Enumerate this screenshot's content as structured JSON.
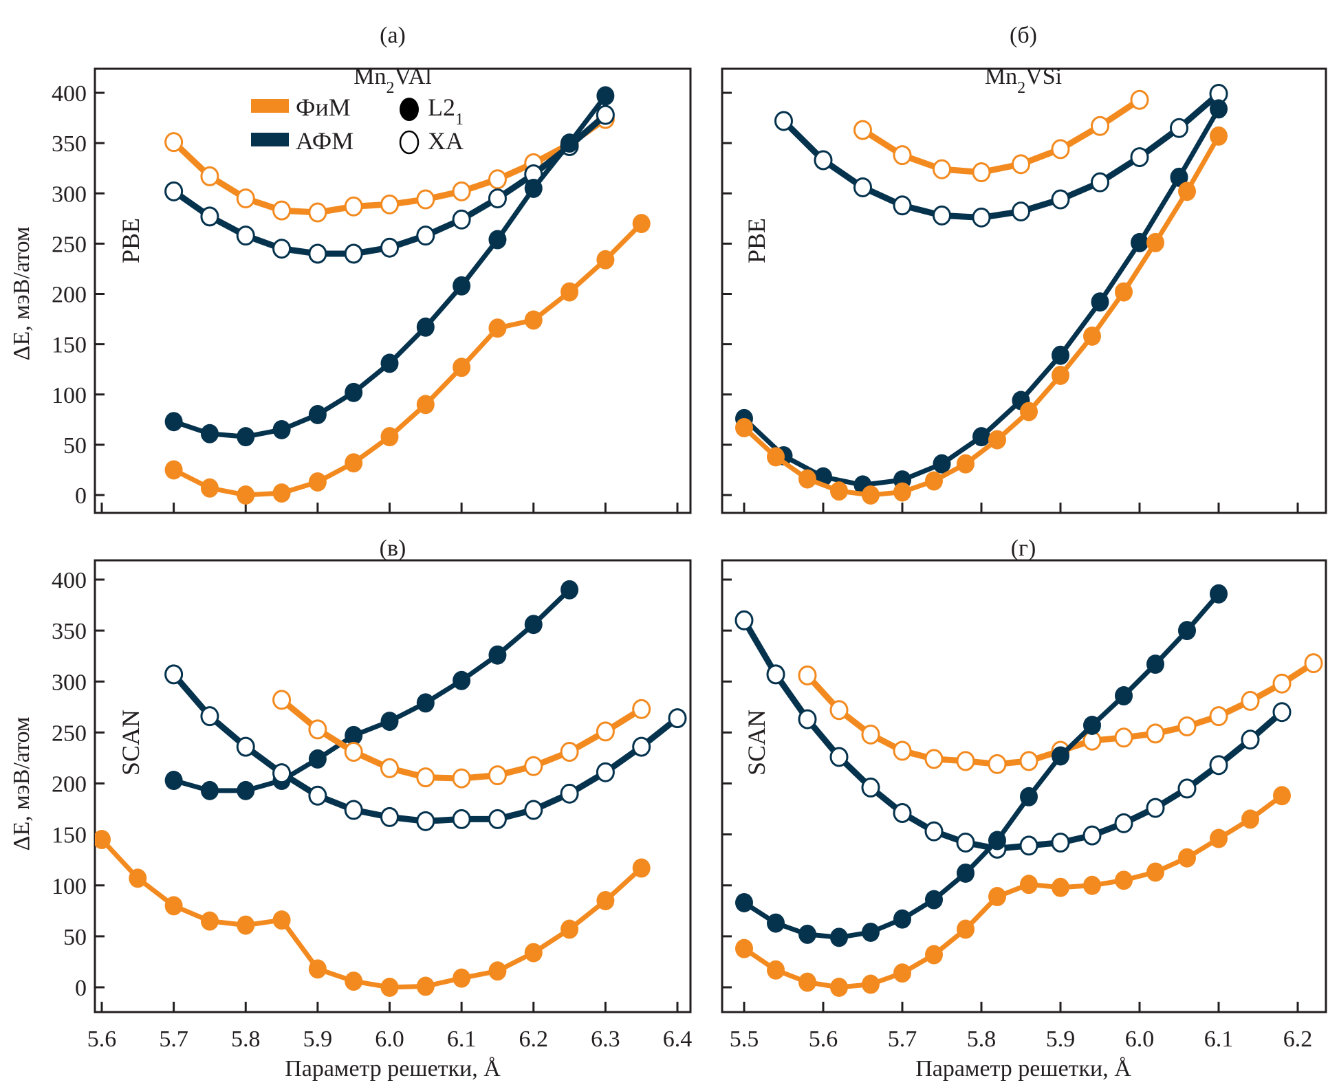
{
  "colors": {
    "fim": "#f38a1f",
    "afm": "#05324d",
    "axis": "#231f20"
  },
  "legend": {
    "fim_label": "ФиМ",
    "afm_label": "АФМ",
    "l21_label": "L2",
    "l21_sub": "1",
    "xa_label": "XA"
  },
  "ylabel": "ΔE, мэВ/атом",
  "xlabel": "Параметр решетки, Å",
  "chart_data": [
    {
      "type": "line",
      "panel": "(a)",
      "title": "Mn2VAl",
      "title_main": "Mn",
      "title_sub": "2",
      "title_rest": "VAl",
      "method": "PBE",
      "xlabel": "",
      "ylabel": "ΔE, мэВ/атом",
      "xlim": [
        5.575,
        6.41
      ],
      "ylim": [
        -18,
        418
      ],
      "xticks": [
        5.6,
        5.7,
        5.8,
        5.9,
        6.0,
        6.1,
        6.2,
        6.3,
        6.4
      ],
      "xtick_labels": [],
      "yticks": [
        0,
        50,
        100,
        150,
        200,
        250,
        300,
        350,
        400
      ],
      "ytick_labels": [
        "0",
        "50",
        "100",
        "150",
        "200",
        "250",
        "300",
        "350",
        "400"
      ],
      "show_legend": true,
      "legend_position": "top-left",
      "series": [
        {
          "name": "ФиМ XA",
          "magnetic": "fim",
          "structure": "XA",
          "x": [
            5.7,
            5.75,
            5.8,
            5.85,
            5.9,
            5.95,
            6.0,
            6.05,
            6.1,
            6.15,
            6.2,
            6.25,
            6.3
          ],
          "y": [
            351,
            317,
            295,
            283,
            281,
            287,
            289,
            294,
            302,
            314,
            330,
            349,
            374
          ]
        },
        {
          "name": "АФМ XA",
          "magnetic": "afm",
          "structure": "XA",
          "x": [
            5.7,
            5.75,
            5.8,
            5.85,
            5.9,
            5.95,
            6.0,
            6.05,
            6.1,
            6.15,
            6.2,
            6.25,
            6.3
          ],
          "y": [
            302,
            277,
            258,
            245,
            240,
            240,
            246,
            258,
            274,
            295,
            319,
            347,
            378
          ]
        },
        {
          "name": "АФМ L21",
          "magnetic": "afm",
          "structure": "L21",
          "x": [
            5.7,
            5.75,
            5.8,
            5.85,
            5.9,
            5.95,
            6.0,
            6.05,
            6.1,
            6.15,
            6.2,
            6.25,
            6.3
          ],
          "y": [
            73,
            61,
            58,
            65,
            80,
            102,
            131,
            167,
            208,
            254,
            305,
            350,
            397
          ]
        },
        {
          "name": "ФиМ L21",
          "magnetic": "fim",
          "structure": "L21",
          "x": [
            5.7,
            5.75,
            5.8,
            5.85,
            5.9,
            5.95,
            6.0,
            6.05,
            6.1,
            6.15,
            6.2,
            6.25,
            6.3,
            6.35
          ],
          "y": [
            25,
            7,
            0,
            2,
            13,
            32,
            58,
            90,
            127,
            166,
            174,
            202,
            234,
            270
          ]
        }
      ]
    },
    {
      "type": "line",
      "panel": "(б)",
      "title": "Mn2VSi",
      "title_main": "Mn",
      "title_sub": "2",
      "title_rest": "VSi",
      "method": "PBE",
      "xlabel": "",
      "ylabel": "",
      "xlim": [
        5.472,
        6.235
      ],
      "ylim": [
        -18,
        418
      ],
      "xticks": [
        5.5,
        5.6,
        5.7,
        5.8,
        5.9,
        6.0,
        6.1,
        6.2
      ],
      "xtick_labels": [],
      "yticks": [
        0,
        50,
        100,
        150,
        200,
        250,
        300,
        350,
        400
      ],
      "ytick_labels": [],
      "show_legend": false,
      "series": [
        {
          "name": "ФиМ XA",
          "magnetic": "fim",
          "structure": "XA",
          "x": [
            5.65,
            5.7,
            5.75,
            5.8,
            5.85,
            5.9,
            5.95,
            6.0
          ],
          "y": [
            363,
            338,
            324,
            321,
            329,
            344,
            367,
            393
          ]
        },
        {
          "name": "АФМ XA",
          "magnetic": "afm",
          "structure": "XA",
          "x": [
            5.55,
            5.6,
            5.65,
            5.7,
            5.75,
            5.8,
            5.85,
            5.9,
            5.95,
            6.0,
            6.05,
            6.1
          ],
          "y": [
            372,
            333,
            306,
            288,
            278,
            276,
            282,
            294,
            311,
            336,
            365,
            399
          ]
        },
        {
          "name": "АФМ L21",
          "magnetic": "afm",
          "structure": "L21",
          "x": [
            5.5,
            5.55,
            5.6,
            5.65,
            5.7,
            5.75,
            5.8,
            5.85,
            5.9,
            5.95,
            6.0,
            6.05,
            6.1
          ],
          "y": [
            76,
            39,
            18,
            10,
            15,
            31,
            58,
            94,
            139,
            192,
            251,
            316,
            384
          ]
        },
        {
          "name": "ФиМ L21",
          "magnetic": "fim",
          "structure": "L21",
          "x": [
            5.5,
            5.54,
            5.58,
            5.62,
            5.66,
            5.7,
            5.74,
            5.78,
            5.82,
            5.86,
            5.9,
            5.94,
            5.98,
            6.02,
            6.06,
            6.1
          ],
          "y": [
            67,
            38,
            16,
            4,
            0,
            3,
            14,
            31,
            55,
            83,
            119,
            158,
            202,
            251,
            302,
            357
          ]
        }
      ]
    },
    {
      "type": "line",
      "panel": "(в)",
      "title": "",
      "method": "SCAN",
      "xlabel": "Параметр решетки, Å",
      "ylabel": "ΔE, мэВ/атом",
      "xlim": [
        5.575,
        6.41
      ],
      "ylim": [
        -18,
        418
      ],
      "xticks": [
        5.6,
        5.7,
        5.8,
        5.9,
        6.0,
        6.1,
        6.2,
        6.3,
        6.4
      ],
      "xtick_labels": [
        "5.6",
        "5.7",
        "5.8",
        "5.9",
        "6.0",
        "6.1",
        "6.2",
        "6.3",
        "6.4"
      ],
      "yticks": [
        0,
        50,
        100,
        150,
        200,
        250,
        300,
        350,
        400
      ],
      "ytick_labels": [
        "0",
        "50",
        "100",
        "150",
        "200",
        "250",
        "300",
        "350",
        "400"
      ],
      "show_legend": false,
      "series": [
        {
          "name": "АФМ L21",
          "magnetic": "afm",
          "structure": "L21",
          "x": [
            5.7,
            5.75,
            5.8,
            5.85,
            5.9,
            5.95,
            6.0,
            6.05,
            6.1,
            6.15,
            6.2,
            6.25
          ],
          "y": [
            203,
            193,
            193,
            203,
            224,
            247,
            261,
            279,
            301,
            326,
            356,
            390
          ]
        },
        {
          "name": "АФМ XA",
          "magnetic": "afm",
          "structure": "XA",
          "x": [
            5.7,
            5.75,
            5.8,
            5.85,
            5.9,
            5.95,
            6.0,
            6.05,
            6.1,
            6.15,
            6.2,
            6.25,
            6.3,
            6.35,
            6.4
          ],
          "y": [
            307,
            266,
            236,
            210,
            188,
            174,
            167,
            163,
            165,
            165,
            174,
            190,
            211,
            236,
            264
          ]
        },
        {
          "name": "ФиМ XA",
          "magnetic": "fim",
          "structure": "XA",
          "x": [
            5.85,
            5.9,
            5.95,
            6.0,
            6.05,
            6.1,
            6.15,
            6.2,
            6.25,
            6.3,
            6.35
          ],
          "y": [
            282,
            253,
            231,
            215,
            206,
            205,
            208,
            217,
            231,
            251,
            273
          ]
        },
        {
          "name": "ФиМ L21",
          "magnetic": "fim",
          "structure": "L21",
          "x": [
            5.6,
            5.65,
            5.7,
            5.75,
            5.8,
            5.85,
            5.9,
            5.95,
            6.0,
            6.05,
            6.1,
            6.15,
            6.2,
            6.25,
            6.3,
            6.35
          ],
          "y": [
            145,
            107,
            80,
            65,
            61,
            66,
            18,
            6,
            0,
            1,
            9,
            16,
            34,
            57,
            85,
            117
          ]
        }
      ]
    },
    {
      "type": "line",
      "panel": "(г)",
      "title": "",
      "method": "SCAN",
      "xlabel": "Параметр решетки, Å",
      "ylabel": "",
      "xlim": [
        5.472,
        6.235
      ],
      "ylim": [
        -18,
        418
      ],
      "xticks": [
        5.5,
        5.6,
        5.7,
        5.8,
        5.9,
        6.0,
        6.1,
        6.2
      ],
      "xtick_labels": [
        "5.5",
        "5.6",
        "5.7",
        "5.8",
        "5.9",
        "6.0",
        "6.1",
        "6.2"
      ],
      "yticks": [
        0,
        50,
        100,
        150,
        200,
        250,
        300,
        350,
        400
      ],
      "ytick_labels": [],
      "show_legend": false,
      "series": [
        {
          "name": "АФМ XA",
          "magnetic": "afm",
          "structure": "XA",
          "x": [
            5.5,
            5.54,
            5.58,
            5.62,
            5.66,
            5.7,
            5.74,
            5.78,
            5.82,
            5.86,
            5.9,
            5.94,
            5.98,
            6.02,
            6.06,
            6.1,
            6.14,
            6.18
          ],
          "y": [
            360,
            307,
            263,
            226,
            196,
            171,
            153,
            142,
            136,
            139,
            142,
            149,
            161,
            176,
            195,
            218,
            243,
            270
          ]
        },
        {
          "name": "ФиМ XA",
          "magnetic": "fim",
          "structure": "XA",
          "x": [
            5.58,
            5.62,
            5.66,
            5.7,
            5.74,
            5.78,
            5.82,
            5.86,
            5.9,
            5.94,
            5.98,
            6.02,
            6.06,
            6.1,
            6.14,
            6.18,
            6.22
          ],
          "y": [
            306,
            272,
            248,
            232,
            224,
            222,
            219,
            222,
            232,
            242,
            245,
            249,
            256,
            266,
            281,
            298,
            318
          ]
        },
        {
          "name": "АФМ L21",
          "magnetic": "afm",
          "structure": "L21",
          "x": [
            5.5,
            5.54,
            5.58,
            5.62,
            5.66,
            5.7,
            5.74,
            5.78,
            5.82,
            5.86,
            5.9,
            5.94,
            5.98,
            6.02,
            6.06,
            6.1
          ],
          "y": [
            83,
            63,
            52,
            49,
            54,
            67,
            86,
            112,
            144,
            187,
            227,
            257,
            286,
            317,
            350,
            386
          ]
        },
        {
          "name": "ФиМ L21",
          "magnetic": "fim",
          "structure": "L21",
          "x": [
            5.5,
            5.54,
            5.58,
            5.62,
            5.66,
            5.7,
            5.74,
            5.78,
            5.82,
            5.86,
            5.9,
            5.94,
            5.98,
            6.02,
            6.06,
            6.1,
            6.14,
            6.18
          ],
          "y": [
            38,
            17,
            5,
            0,
            3,
            14,
            32,
            57,
            89,
            101,
            98,
            100,
            105,
            113,
            127,
            146,
            165,
            188
          ]
        }
      ]
    }
  ]
}
